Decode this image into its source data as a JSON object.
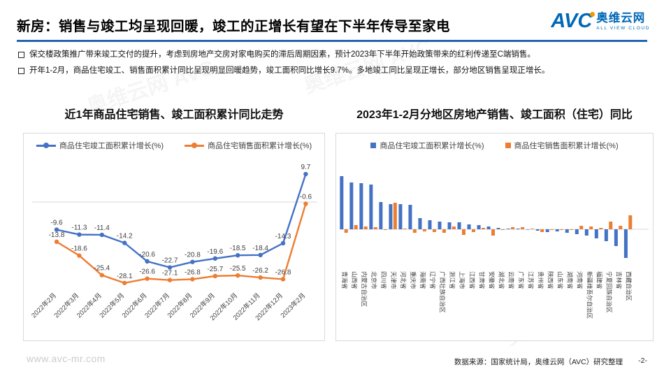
{
  "header": {
    "title": "新房：销售与竣工均呈现回暖，竣工的正增长有望在下半年传导至家电",
    "logo": {
      "abbr": "AVC",
      "name": "奥维云网",
      "tagline": "ALL VIEW CLOUD"
    }
  },
  "bullets": [
    "保交楼政策推广带来竣工交付的提升，考虑到房地产交房对家电购买的滞后周期因素，预计2023年下半年开始政策带来的红利传递至C端销售。",
    "开年1-2月，商品住宅竣工、销售面积累计同比呈现明显回暖趋势，竣工面积同比增长9.7%。多地竣工同比呈现正增长，部分地区销售呈现正增长。"
  ],
  "footer": {
    "website": "www.avc-mr.com",
    "source": "数据来源：国家统计局，奥维云网（AVC）研究整理",
    "page": "-2-"
  },
  "watermark": "奥维云网 AVC",
  "colors": {
    "completion_blue": "#4472C4",
    "sales_orange": "#ED7D31",
    "header_rule_blue": "#2565AE",
    "logo_blue": "#0068B7",
    "logo_dot_orange": "#F39800",
    "panel_border": "#D9D9D9"
  },
  "chart_data": [
    {
      "type": "line",
      "title": "近1年商品住宅销售、竣工面积累计同比走势",
      "categories": [
        "2022年2月",
        "2022年3月",
        "2022年4月",
        "2022年5月",
        "2022年6月",
        "2022年7月",
        "2022年8月",
        "2022年9月",
        "2022年10月",
        "2022年11月",
        "2022年12月",
        "2023年2月"
      ],
      "series": [
        {
          "name": "商品住宅竣工面积累计增长(%)",
          "color": "#4472C4",
          "values": [
            -9.6,
            -11.3,
            -11.4,
            -14.2,
            -20.6,
            -22.7,
            -20.8,
            -19.6,
            -18.5,
            -18.4,
            -14.3,
            9.7
          ]
        },
        {
          "name": "商品住宅销售面积累计增长(%)",
          "color": "#ED7D31",
          "values": [
            -13.8,
            -18.6,
            -25.4,
            -28.1,
            -26.6,
            -27.1,
            -26.8,
            -25.7,
            -25.5,
            -26.2,
            -26.8,
            -0.6
          ]
        }
      ],
      "ylim": [
        -32,
        14
      ],
      "grid": "zero-line-only",
      "legend_position": "top",
      "data_labels": true
    },
    {
      "type": "bar",
      "title": "2023年1-2月分地区房地产销售、竣工面积（住宅）同比",
      "categories": [
        "青海省",
        "山西省",
        "内蒙古自治区",
        "北京市",
        "四川省",
        "天津市",
        "河北省",
        "重庆市",
        "海南省",
        "辽宁省",
        "广西壮族自治区",
        "浙江省",
        "上海市",
        "江西省",
        "甘肃省",
        "安徽省",
        "湖北省",
        "云南省",
        "广东省",
        "江苏省",
        "贵州省",
        "陕西省",
        "山东省",
        "湖南省",
        "河南省",
        "新疆维吾尔自治区",
        "福建省",
        "宁夏回族自治区",
        "吉林省",
        "西藏自治区"
      ],
      "series": [
        {
          "name": "商品住宅竣工面积累计增长(%)",
          "color": "#4472C4",
          "values": [
            76,
            67,
            66,
            64,
            39,
            36,
            36,
            35,
            16,
            13,
            11,
            10,
            10,
            7,
            6,
            4,
            2,
            1,
            1,
            0,
            -2,
            -4,
            -3,
            -5,
            -7,
            -9,
            -13,
            -17,
            -24,
            -41
          ]
        },
        {
          "name": "商品住宅销售面积累计增长(%)",
          "color": "#ED7D31",
          "values": [
            -5,
            6,
            4,
            3,
            -1,
            38,
            1,
            -5,
            -3,
            -4,
            -5,
            4,
            -8,
            -4,
            2,
            -9,
            -1,
            3,
            3,
            1,
            -4,
            -1,
            -1,
            -1,
            5,
            4,
            2,
            11,
            5,
            20
          ]
        }
      ],
      "ylim": [
        -50,
        100
      ],
      "grid": "zero-line-only",
      "legend_position": "top",
      "data_labels": false
    }
  ]
}
